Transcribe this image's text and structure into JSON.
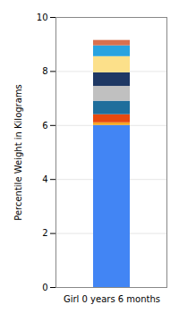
{
  "chart_data": {
    "type": "bar",
    "stacked": true,
    "ylabel": "Percentile Weight in Kilograms",
    "categories": [
      "Girl 0 years 6 months"
    ],
    "series": [
      {
        "color": "#4285f4",
        "values": [
          6.0
        ]
      },
      {
        "color": "#f5a623",
        "values": [
          0.1
        ]
      },
      {
        "color": "#e8490f",
        "values": [
          0.3
        ]
      },
      {
        "color": "#1f6e9c",
        "values": [
          0.5
        ]
      },
      {
        "color": "#c0c0c0",
        "values": [
          0.55
        ]
      },
      {
        "color": "#1f3864",
        "values": [
          0.5
        ]
      },
      {
        "color": "#fce08a",
        "values": [
          0.6
        ]
      },
      {
        "color": "#29a3e0",
        "values": [
          0.4
        ]
      },
      {
        "color": "#d9704f",
        "values": [
          0.2
        ]
      }
    ],
    "ylim": [
      0,
      10
    ],
    "yticks": [
      0,
      2,
      4,
      6,
      8,
      10
    ],
    "grid": true
  }
}
